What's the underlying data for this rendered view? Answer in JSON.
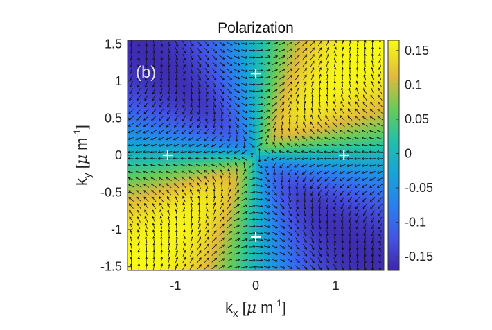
{
  "chart_data": {
    "type": "heatmap",
    "title": "Polarization",
    "panel_label": "(b)",
    "xlabel": {
      "base": "k",
      "sub": "x",
      "unit_open": " [",
      "mu": "μ",
      "unit_mid": " m",
      "exp": "-1",
      "unit_close": "]"
    },
    "ylabel": {
      "base": "k",
      "sub": "y",
      "unit_open": " [",
      "mu": "μ",
      "unit_mid": " m",
      "exp": "-1",
      "unit_close": "]"
    },
    "xlim": [
      -1.6,
      1.6
    ],
    "ylim": [
      -1.55,
      1.55
    ],
    "xticks": [
      {
        "value": -1,
        "label": "-1"
      },
      {
        "value": 0,
        "label": "0"
      },
      {
        "value": 1,
        "label": "1"
      }
    ],
    "yticks": [
      {
        "value": 1.5,
        "label": "1.5"
      },
      {
        "value": 1,
        "label": "1"
      },
      {
        "value": 0.5,
        "label": "0.5"
      },
      {
        "value": 0,
        "label": "0"
      },
      {
        "value": -0.5,
        "label": "-0.5"
      },
      {
        "value": -1,
        "label": "-1"
      },
      {
        "value": -1.5,
        "label": "-1.5"
      }
    ],
    "colorbar": {
      "range": [
        -0.17,
        0.165
      ],
      "ticks": [
        {
          "value": 0.15,
          "label": "0.15"
        },
        {
          "value": 0.1,
          "label": "0.1"
        },
        {
          "value": 0.05,
          "label": "0.05"
        },
        {
          "value": 0,
          "label": "0"
        },
        {
          "value": -0.05,
          "label": "-0.05"
        },
        {
          "value": -0.1,
          "label": "-0.1"
        },
        {
          "value": -0.15,
          "label": "-0.15"
        }
      ]
    },
    "field": "S3 = 0.165 * sin(2*phi) * (1 - exp(-2.5*r))",
    "markers": [
      {
        "kx": 0,
        "ky": 1.1
      },
      {
        "kx": -1.1,
        "ky": 0
      },
      {
        "kx": 1.1,
        "ky": 0
      },
      {
        "kx": 0,
        "ky": -1.1
      }
    ]
  }
}
